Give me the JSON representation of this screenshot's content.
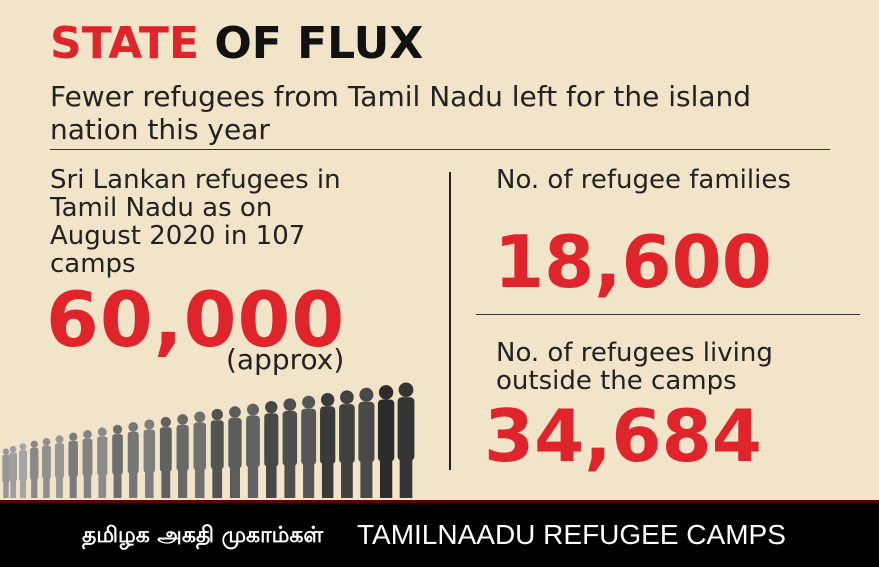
{
  "title": {
    "part1": "STATE",
    "part2": "OF FLUX"
  },
  "subtitle": "Fewer refugees from Tamil Nadu left for the island nation this year",
  "left": {
    "label": "Sri Lankan refugees in Tamil Nadu as on August 2020 in 107 camps",
    "value": "60,000",
    "note": "(approx)"
  },
  "right_top": {
    "label": "No. of refugee families",
    "value": "18,600"
  },
  "right_bottom": {
    "label": "No. of refugees living outside the camps",
    "value": "34,684"
  },
  "footer": {
    "tamil": "தமிழக அகதி முகாம்கள்",
    "english": "TAMILNAADU REFUGEE CAMPS"
  },
  "colors": {
    "accent": "#e0242b",
    "background": "#f1e4c9",
    "footer": "#000000"
  },
  "illustration": "queue-of-people-silhouettes"
}
